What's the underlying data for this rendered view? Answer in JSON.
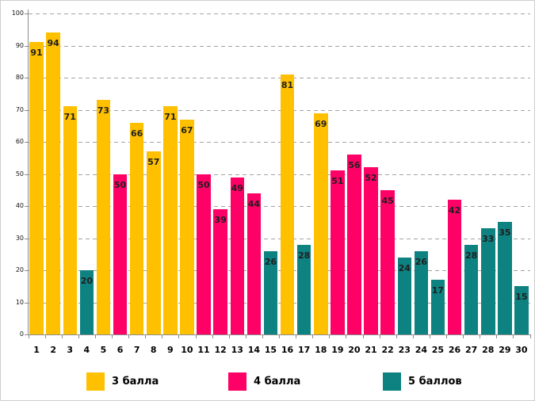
{
  "chart_data": {
    "type": "bar",
    "title": "",
    "xlabel": "",
    "ylabel": "",
    "categories": [
      "1",
      "2",
      "3",
      "4",
      "5",
      "6",
      "7",
      "8",
      "9",
      "10",
      "11",
      "12",
      "13",
      "14",
      "15",
      "16",
      "17",
      "18",
      "19",
      "20",
      "21",
      "22",
      "23",
      "24",
      "25",
      "26",
      "27",
      "28",
      "29",
      "30"
    ],
    "values": [
      91,
      94,
      71,
      20,
      73,
      50,
      66,
      57,
      71,
      67,
      50,
      39,
      49,
      44,
      26,
      81,
      28,
      69,
      51,
      56,
      52,
      45,
      24,
      26,
      17,
      42,
      28,
      33,
      35,
      15
    ],
    "bar_series": [
      "3 балла",
      "3 балла",
      "3 балла",
      "5 баллов",
      "3 балла",
      "4 балла",
      "3 балла",
      "3 балла",
      "3 балла",
      "3 балла",
      "4 балла",
      "4 балла",
      "4 балла",
      "4 балла",
      "5 баллов",
      "3 балла",
      "5 баллов",
      "3 балла",
      "4 балла",
      "4 балла",
      "4 балла",
      "4 балла",
      "5 баллов",
      "5 баллов",
      "5 баллов",
      "4 балла",
      "5 баллов",
      "5 баллов",
      "5 баллов",
      "5 баллов"
    ],
    "series": [
      {
        "name": "3 балла",
        "color": "#FFC000"
      },
      {
        "name": "4 балла",
        "color": "#FF0066"
      },
      {
        "name": "5 баллов",
        "color": "#0E8181"
      }
    ],
    "yticks": [
      0,
      10,
      20,
      30,
      40,
      50,
      60,
      70,
      80,
      90,
      100
    ],
    "ylim": [
      0,
      100
    ],
    "grid": "horizontal-dashed",
    "legend_position": "bottom",
    "data_labels": "inside-end"
  },
  "colors": {
    "axis": "#8C8C8C",
    "gridline": "#A3A3A3",
    "data_label_text": "#1F1F1F",
    "background": "#FFFFFF"
  }
}
